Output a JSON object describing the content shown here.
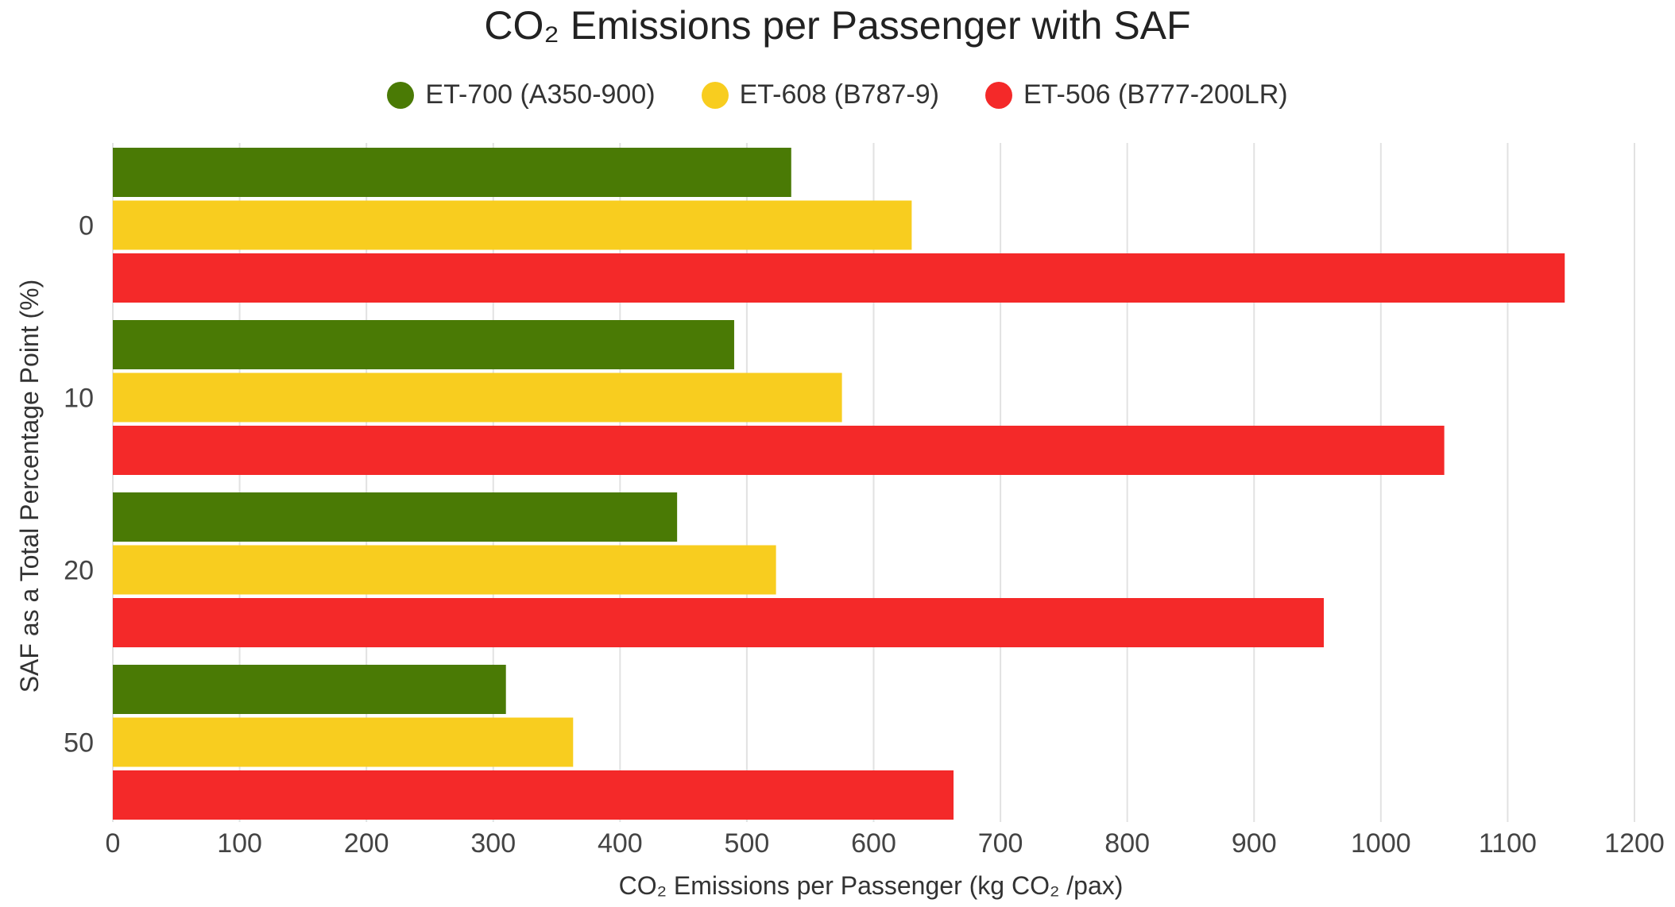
{
  "chart_data": {
    "type": "bar",
    "orientation": "horizontal",
    "title": "CO₂ Emissions per Passenger with SAF",
    "xlabel": "CO₂ Emissions per Passenger (kg CO₂ /pax)",
    "ylabel": "SAF as a Total Percentage Point (%)",
    "categories": [
      "0",
      "10",
      "20",
      "50"
    ],
    "series": [
      {
        "name": "ET-700 (A350-900)",
        "color": "#4a7a05",
        "values": [
          535,
          490,
          445,
          310
        ]
      },
      {
        "name": "ET-608 (B787-9)",
        "color": "#f8cd1f",
        "values": [
          630,
          575,
          523,
          363
        ]
      },
      {
        "name": "ET-506 (B777-200LR)",
        "color": "#f42929",
        "values": [
          1145,
          1050,
          955,
          663
        ]
      }
    ],
    "xlim": [
      0,
      1200
    ],
    "xticks": [
      0,
      100,
      200,
      300,
      400,
      500,
      600,
      700,
      800,
      900,
      1000,
      1100,
      1200
    ],
    "grid": "vertical",
    "legend_position": "top-center"
  }
}
